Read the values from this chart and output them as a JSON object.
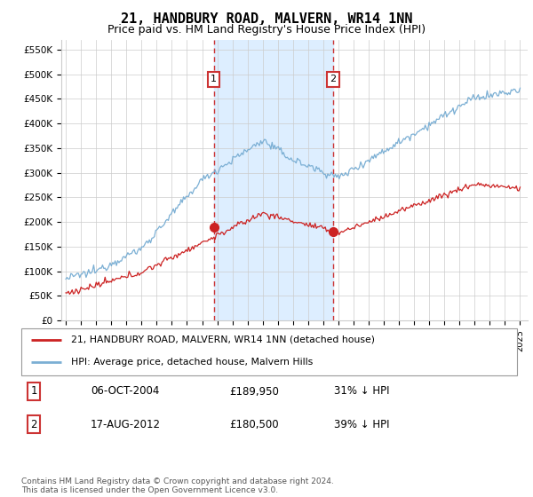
{
  "title": "21, HANDBURY ROAD, MALVERN, WR14 1NN",
  "subtitle": "Price paid vs. HM Land Registry's House Price Index (HPI)",
  "title_fontsize": 11,
  "subtitle_fontsize": 9,
  "ylabel_ticks": [
    "£0",
    "£50K",
    "£100K",
    "£150K",
    "£200K",
    "£250K",
    "£300K",
    "£350K",
    "£400K",
    "£450K",
    "£500K",
    "£550K"
  ],
  "ytick_vals": [
    0,
    50000,
    100000,
    150000,
    200000,
    250000,
    300000,
    350000,
    400000,
    450000,
    500000,
    550000
  ],
  "ylim": [
    0,
    570000
  ],
  "xlim_start": 1994.7,
  "xlim_end": 2025.5,
  "hpi_color": "#7bafd4",
  "sale_color": "#cc2222",
  "sale1_x": 2004.77,
  "sale1_y": 189950,
  "sale2_x": 2012.63,
  "sale2_y": 180500,
  "legend_sale": "21, HANDBURY ROAD, MALVERN, WR14 1NN (detached house)",
  "legend_hpi": "HPI: Average price, detached house, Malvern Hills",
  "table_row1": [
    "1",
    "06-OCT-2004",
    "£189,950",
    "31% ↓ HPI"
  ],
  "table_row2": [
    "2",
    "17-AUG-2012",
    "£180,500",
    "39% ↓ HPI"
  ],
  "footnote": "Contains HM Land Registry data © Crown copyright and database right 2024.\nThis data is licensed under the Open Government Licence v3.0.",
  "background_highlight": "#ddeeff",
  "vline_color": "#cc3333",
  "grid_color": "#cccccc"
}
